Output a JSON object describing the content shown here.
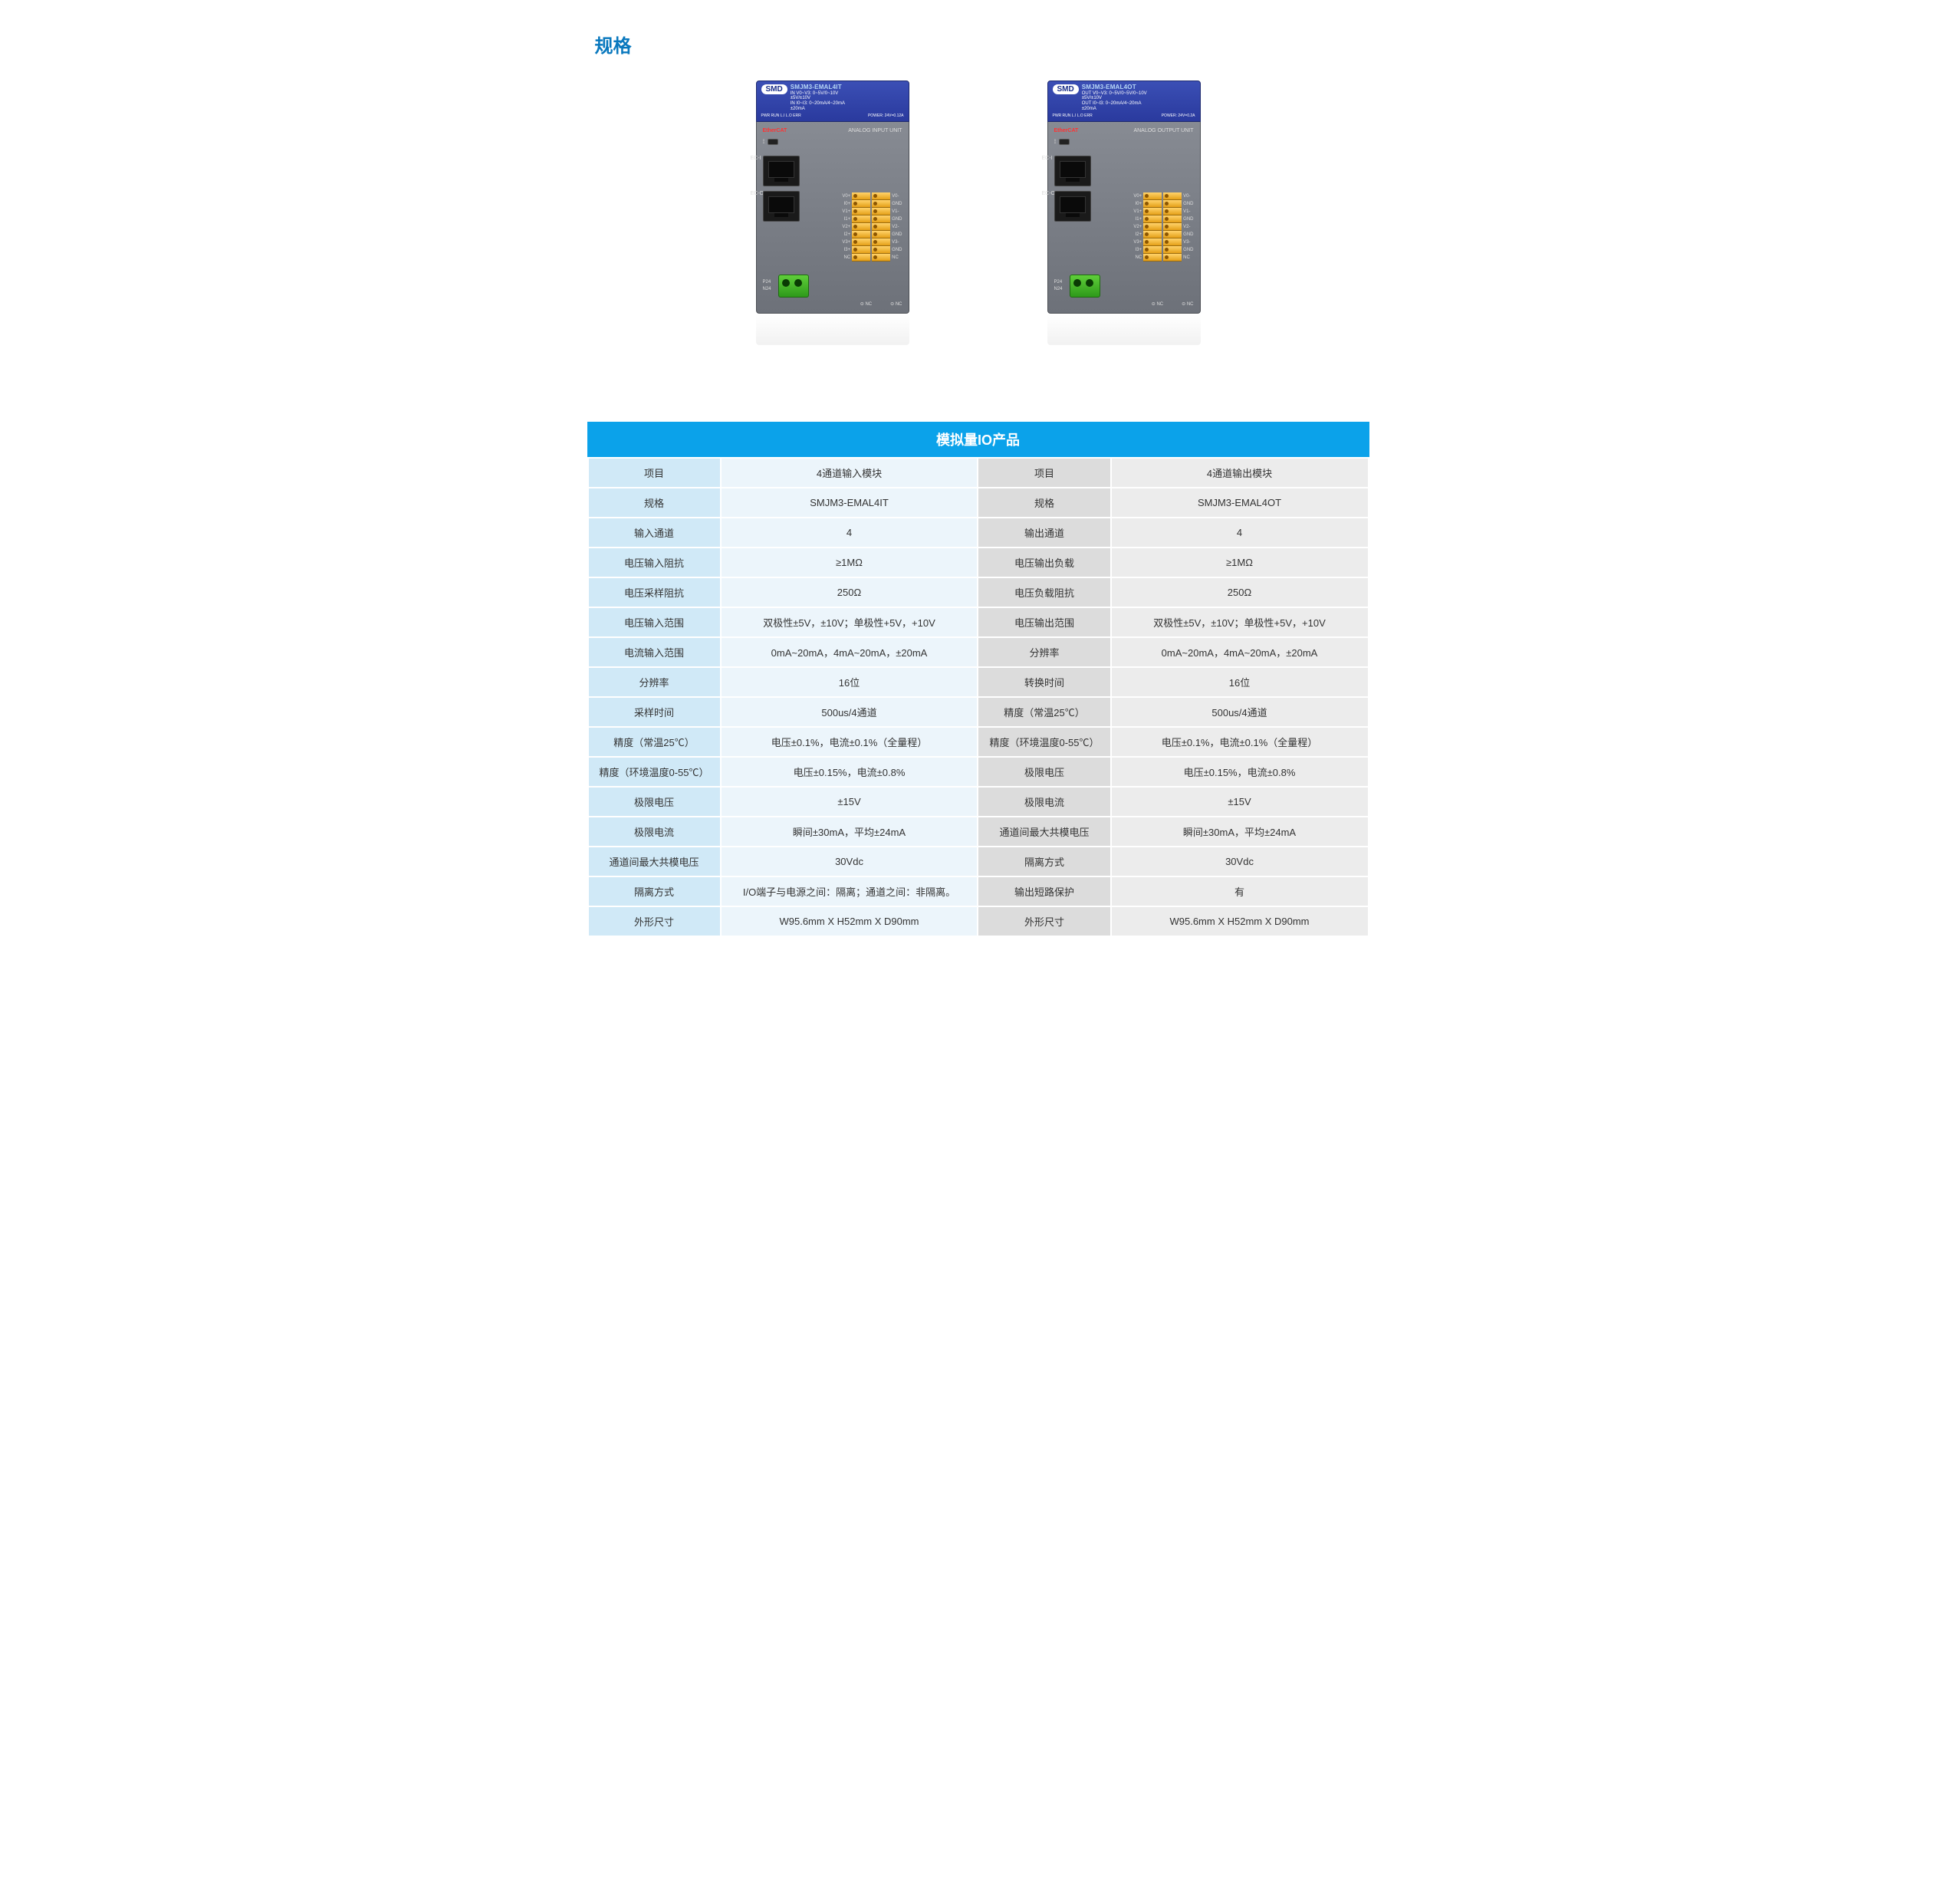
{
  "page_title": "规格",
  "devices": [
    {
      "brand": "SMD",
      "model": "SMJM3-EMAL4IT",
      "spec_lines": "IN V0~V3: 0~5V/0~10V\n±5V/±10V\nIN I0~I3: 0~20mA/4~20mA\n±20mA",
      "power_line": "POWER: 24V=0.12A",
      "leds": "PWR RUN L.I L.O ERR",
      "bus": "EtherCAT",
      "unit_label": "ANALOG INPUT UNIT",
      "port1": "EC-I",
      "port2": "EC-O",
      "left_pins": [
        "V0+",
        "I0+",
        "V1+",
        "I1+",
        "V2+",
        "I2+",
        "V3+",
        "I3+",
        "NC"
      ],
      "right_pins": [
        "V0-",
        "GND",
        "V1-",
        "GND",
        "V2-",
        "GND",
        "V3-",
        "GND",
        "NC"
      ],
      "pwr_pins": "P24\nN24"
    },
    {
      "brand": "SMD",
      "model": "SMJM3-EMAL4OT",
      "spec_lines": "OUT V0~V3: 0~5V/0~5V/0~10V\n±5V/±10V\nOUT I0~I3: 0~20mA/4~20mA\n±20mA",
      "power_line": "POWER: 24V=0.2A",
      "leds": "PWR RUN L.I L.O ERR",
      "bus": "EtherCAT",
      "unit_label": "ANALOG OUTPUT UNIT",
      "port1": "EC-I",
      "port2": "EC-O",
      "left_pins": [
        "V0+",
        "I0+",
        "V1+",
        "I1+",
        "V2+",
        "I2+",
        "V3+",
        "I3+",
        "NC"
      ],
      "right_pins": [
        "V0-",
        "GND",
        "V1-",
        "GND",
        "V2-",
        "GND",
        "V3-",
        "GND",
        "NC"
      ],
      "pwr_pins": "P24\nN24"
    }
  ],
  "table": {
    "title": "模拟量IO产品",
    "rows": [
      {
        "la": "项目",
        "va": "4通道输入模块",
        "lb": "项目",
        "vb": "4通道输出模块"
      },
      {
        "la": "规格",
        "va": "SMJM3-EMAL4IT",
        "lb": "规格",
        "vb": "SMJM3-EMAL4OT"
      },
      {
        "la": "输入通道",
        "va": "4",
        "lb": "输出通道",
        "vb": "4"
      },
      {
        "la": "电压输入阻抗",
        "va": "≥1MΩ",
        "lb": "电压输出负载",
        "vb": "≥1MΩ"
      },
      {
        "la": "电压采样阻抗",
        "va": "250Ω",
        "lb": "电压负载阻抗",
        "vb": "250Ω"
      },
      {
        "la": "电压输入范围",
        "va": "双极性±5V，±10V；单极性+5V，+10V",
        "lb": "电压输出范围",
        "vb": "双极性±5V，±10V；单极性+5V，+10V"
      },
      {
        "la": "电流输入范围",
        "va": "0mA~20mA，4mA~20mA，±20mA",
        "lb": "分辨率",
        "vb": "0mA~20mA，4mA~20mA，±20mA"
      },
      {
        "la": "分辨率",
        "va": "16位",
        "lb": "转换时间",
        "vb": "16位"
      },
      {
        "la": "采样时间",
        "va": "500us/4通道",
        "lb": "精度（常温25℃）",
        "vb": "500us/4通道"
      },
      {
        "la": "精度（常温25℃）",
        "va": "电压±0.1%，电流±0.1%（全量程）",
        "lb": "精度（环境温度0-55℃）",
        "vb": "电压±0.1%，电流±0.1%（全量程）"
      },
      {
        "la": "精度（环境温度0-55℃）",
        "va": "电压±0.15%，电流±0.8%",
        "lb": "极限电压",
        "vb": "电压±0.15%，电流±0.8%"
      },
      {
        "la": "极限电压",
        "va": "±15V",
        "lb": "极限电流",
        "vb": "±15V"
      },
      {
        "la": "极限电流",
        "va": "瞬间±30mA，平均±24mA",
        "lb": "通道间最大共模电压",
        "vb": "瞬间±30mA，平均±24mA"
      },
      {
        "la": "通道间最大共模电压",
        "va": "30Vdc",
        "lb": "隔离方式",
        "vb": "30Vdc"
      },
      {
        "la": "隔离方式",
        "va": "I/O端子与电源之间：隔离；通道之间：非隔离。",
        "lb": "输出短路保护",
        "vb": "有"
      },
      {
        "la": "外形尺寸",
        "va": "W95.6mm X H52mm X D90mm",
        "lb": "外形尺寸",
        "vb": "W95.6mm X H52mm X D90mm"
      }
    ],
    "colors": {
      "header_bg": "#0ba2ea",
      "header_fg": "#ffffff",
      "label_a_bg": "#d0e9f7",
      "value_a_bg": "#ecf5fb",
      "label_b_bg": "#dcdcdc",
      "value_b_bg": "#ececec",
      "border": "#ffffff"
    }
  }
}
